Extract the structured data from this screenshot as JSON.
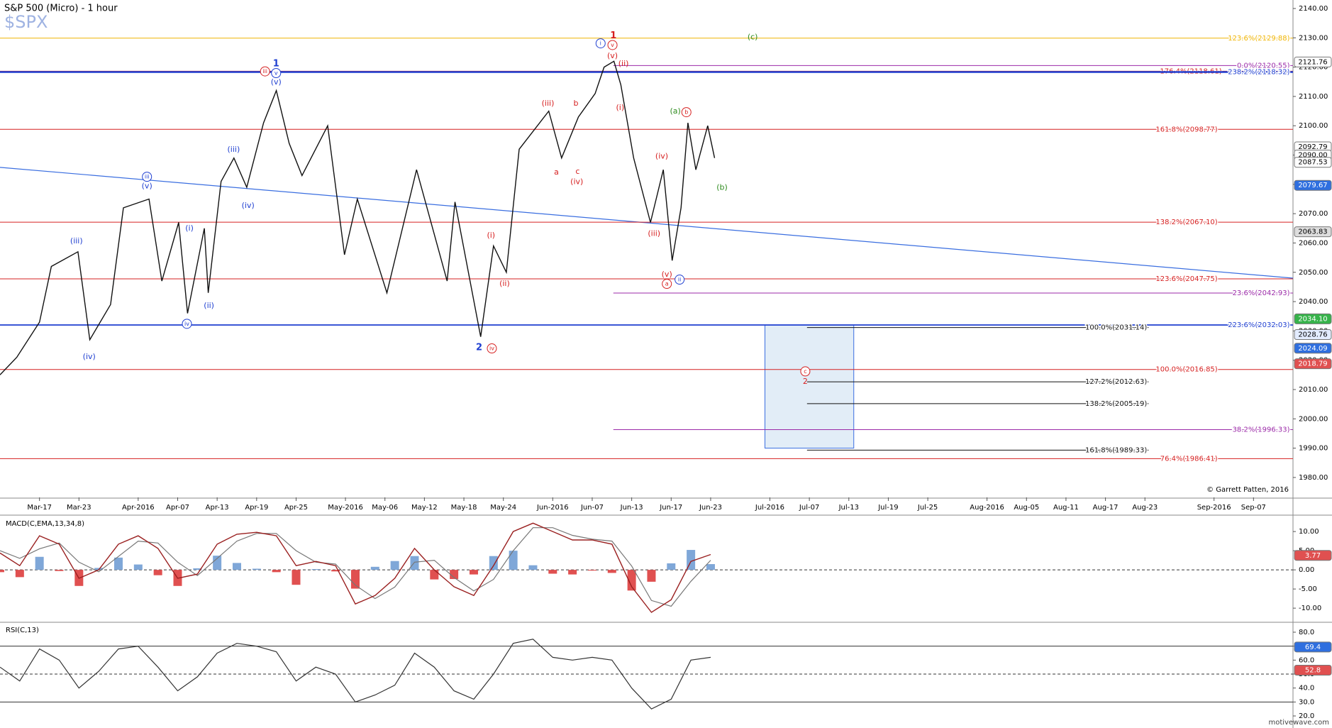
{
  "chart_data": [
    {
      "type": "price",
      "title": "S&P 500 (Micro) - 1 hour",
      "subtitle": "$SPX",
      "annotation": "© Garrett Patten, 2016",
      "xlim": [
        0,
        131
      ],
      "xticks": [
        {
          "value": 4,
          "label": "Mar-17"
        },
        {
          "value": 8,
          "label": "Mar-23"
        },
        {
          "value": 14,
          "label": "Apr-2016"
        },
        {
          "value": 18,
          "label": "Apr-07"
        },
        {
          "value": 22,
          "label": "Apr-13"
        },
        {
          "value": 26,
          "label": "Apr-19"
        },
        {
          "value": 30,
          "label": "Apr-25"
        },
        {
          "value": 35,
          "label": "May-2016"
        },
        {
          "value": 39,
          "label": "May-06"
        },
        {
          "value": 43,
          "label": "May-12"
        },
        {
          "value": 47,
          "label": "May-18"
        },
        {
          "value": 51,
          "label": "May-24"
        },
        {
          "value": 56,
          "label": "Jun-2016"
        },
        {
          "value": 60,
          "label": "Jun-07"
        },
        {
          "value": 64,
          "label": "Jun-13"
        },
        {
          "value": 68,
          "label": "Jun-17"
        },
        {
          "value": 72,
          "label": "Jun-23"
        },
        {
          "value": 78,
          "label": "Jul-2016"
        },
        {
          "value": 82,
          "label": "Jul-07"
        },
        {
          "value": 86,
          "label": "Jul-13"
        },
        {
          "value": 90,
          "label": "Jul-19"
        },
        {
          "value": 94,
          "label": "Jul-25"
        },
        {
          "value": 100,
          "label": "Aug-2016"
        },
        {
          "value": 104,
          "label": "Aug-05"
        },
        {
          "value": 108,
          "label": "Aug-11"
        },
        {
          "value": 112,
          "label": "Aug-17"
        },
        {
          "value": 116,
          "label": "Aug-23"
        },
        {
          "value": 123,
          "label": "Sep-2016"
        },
        {
          "value": 127,
          "label": "Sep-07"
        }
      ],
      "ylim": [
        1973.2,
        2142.9
      ],
      "yticks": [
        {
          "value": 1980,
          "label": "1980.00"
        },
        {
          "value": 1990,
          "label": "1990.00"
        },
        {
          "value": 2000,
          "label": "2000.00"
        },
        {
          "value": 2010,
          "label": "2010.00"
        },
        {
          "value": 2020,
          "label": "2020.00"
        },
        {
          "value": 2030,
          "label": "2030.00"
        },
        {
          "value": 2040,
          "label": "2040.00"
        },
        {
          "value": 2050,
          "label": "2050.00"
        },
        {
          "value": 2060,
          "label": "2060.00"
        },
        {
          "value": 2070,
          "label": "2070.00"
        },
        {
          "value": 2080,
          "label": "2080.00"
        },
        {
          "value": 2090,
          "label": "2090.00"
        },
        {
          "value": 2100,
          "label": "2100.00"
        },
        {
          "value": 2110,
          "label": "2110.00"
        },
        {
          "value": 2120,
          "label": "2120.00"
        },
        {
          "value": 2130,
          "label": "2130.00"
        },
        {
          "value": 2140,
          "label": "2140.00"
        }
      ],
      "x": [
        0,
        1.7,
        4,
        5.2,
        7.9,
        9.1,
        11.2,
        12.5,
        15.1,
        16.4,
        18.1,
        19,
        20.7,
        21.1,
        22.4,
        23.7,
        25,
        26.7,
        28,
        29.3,
        30.6,
        33.2,
        34.9,
        36.2,
        39.2,
        42.2,
        45.3,
        46.1,
        48.7,
        50,
        51.3,
        52.6,
        55.6,
        56.9,
        58.6,
        60.3,
        61.2,
        62.2,
        62.9,
        64.2,
        65.9,
        67.2,
        68.1,
        69,
        69.7,
        70.5,
        71.7,
        72.4
      ],
      "series": [
        {
          "color": "#111111",
          "values": [
            2015,
            2021,
            2033,
            2052,
            2057,
            2027,
            2039,
            2072,
            2075,
            2047,
            2067,
            2036,
            2065,
            2043,
            2081,
            2089,
            2079,
            2101,
            2112,
            2094,
            2083,
            2100,
            2056,
            2075,
            2043,
            2085,
            2047,
            2074,
            2028,
            2059,
            2050,
            2092,
            2105,
            2089,
            2103,
            2111,
            2120,
            2122,
            2114,
            2089,
            2067,
            2085,
            2054,
            2072,
            2101,
            2085,
            2100,
            2089
          ]
        }
      ],
      "trendline": {
        "color": "#3a6ee0",
        "x": [
          0,
          131
        ],
        "values": [
          2085.8,
          2048
        ]
      },
      "target_box": {
        "color": "#3a6ee0",
        "x": [
          77.5,
          86.5
        ],
        "y": [
          1990,
          2032
        ]
      },
      "fib_lines": [
        {
          "value": 2129.88,
          "label": "123.6%(2129.88)",
          "color": "#f0b400"
        },
        {
          "value": 2120.55,
          "label": "0.0%(2120.55)",
          "color": "#9b2aa8"
        },
        {
          "value": 2118.61,
          "label": "176.4%(2118.61)",
          "color": "#d62020"
        },
        {
          "value": 2118.32,
          "label": "238.2%(2118.32)",
          "color": "#1f3fd1"
        },
        {
          "value": 2098.77,
          "label": "161.8%(2098.77)",
          "color": "#d62020"
        },
        {
          "value": 2067.1,
          "label": "138.2%(2067.10)",
          "color": "#d62020"
        },
        {
          "value": 2047.75,
          "label": "123.6%(2047.75)",
          "color": "#d62020"
        },
        {
          "value": 2042.93,
          "label": "23.6%(2042.93)",
          "color": "#9b2aa8"
        },
        {
          "value": 2032.03,
          "label": "223.6%(2032.03)",
          "color": "#1f3fd1"
        },
        {
          "value": 2031.14,
          "label": "100.0%(2031.14)",
          "color": "#111111"
        },
        {
          "value": 2016.85,
          "label": "100.0%(2016.85)",
          "color": "#d62020"
        },
        {
          "value": 2012.63,
          "label": "127.2%(2012.63)",
          "color": "#111111"
        },
        {
          "value": 2005.19,
          "label": "138.2%(2005.19)",
          "color": "#111111"
        },
        {
          "value": 1996.33,
          "label": "38.2%(1996.33)",
          "color": "#9b2aa8"
        },
        {
          "value": 1989.33,
          "label": "161.8%(1989.33)",
          "color": "#111111"
        },
        {
          "value": 1986.41,
          "label": "76.4%(1986.41)",
          "color": "#d62020"
        }
      ],
      "price_tags": [
        {
          "value": 2121.76,
          "label": "2121.76",
          "color": "#ffffff"
        },
        {
          "value": 2092.79,
          "label": "2092.79",
          "color": "#ffffff"
        },
        {
          "value": 2090,
          "label": "2090.00",
          "color": "#ffffff"
        },
        {
          "value": 2087.53,
          "label": "2087.53",
          "color": "#ffffff"
        },
        {
          "value": 2079.67,
          "label": "2079.67",
          "color": "#2f6fdf"
        },
        {
          "value": 2063.83,
          "label": "2063.83",
          "color": "#dddddd"
        },
        {
          "value": 2034.1,
          "label": "2034.10",
          "color": "#36b34a"
        },
        {
          "value": 2028.76,
          "label": "2028.76",
          "color": "#e3ecff"
        },
        {
          "value": 2024.09,
          "label": "2024.09",
          "color": "#2f6fdf"
        },
        {
          "value": 2018.79,
          "label": "2018.79",
          "color": "#e05050"
        }
      ],
      "wave_labels": [
        {
          "text": "1",
          "color": "#1f3fd1",
          "bold": true
        },
        {
          "text": "v",
          "color": "#1f3fd1",
          "circled": true
        },
        {
          "text": "(v)",
          "color": "#1f3fd1"
        },
        {
          "text": "iii",
          "color": "#d62020",
          "circled": true
        },
        {
          "text": "(iii)",
          "color": "#1f3fd1"
        },
        {
          "text": "iii",
          "color": "#1f3fd1",
          "circled": true
        },
        {
          "text": "(v)",
          "color": "#1f3fd1"
        },
        {
          "text": "(iv)",
          "color": "#1f3fd1"
        },
        {
          "text": "(iii)",
          "color": "#1f3fd1"
        },
        {
          "text": "(i)",
          "color": "#1f3fd1"
        },
        {
          "text": "(ii)",
          "color": "#1f3fd1"
        },
        {
          "text": "iv",
          "color": "#1f3fd1",
          "circled": true
        },
        {
          "text": "(iv)",
          "color": "#1f3fd1"
        },
        {
          "text": "2",
          "color": "#1f3fd1",
          "bold": true
        },
        {
          "text": "iv",
          "color": "#d62020",
          "circled": true
        },
        {
          "text": "(i)",
          "color": "#d62020"
        },
        {
          "text": "(ii)",
          "color": "#d62020"
        },
        {
          "text": "(iii)",
          "color": "#d62020"
        },
        {
          "text": "a",
          "color": "#d62020"
        },
        {
          "text": "b",
          "color": "#d62020"
        },
        {
          "text": "c",
          "color": "#d62020"
        },
        {
          "text": "(iv)",
          "color": "#d62020"
        },
        {
          "text": "1",
          "color": "#d62020",
          "bold": true
        },
        {
          "text": "i",
          "color": "#1f3fd1",
          "circled": true
        },
        {
          "text": "v",
          "color": "#d62020",
          "circled": true
        },
        {
          "text": "(v)",
          "color": "#d62020"
        },
        {
          "text": "(ii)",
          "color": "#d62020"
        },
        {
          "text": "(i)",
          "color": "#d62020"
        },
        {
          "text": "(iv)",
          "color": "#d62020"
        },
        {
          "text": "(iii)",
          "color": "#d62020"
        },
        {
          "text": "(v)",
          "color": "#d62020"
        },
        {
          "text": "a",
          "color": "#d62020",
          "circled": true
        },
        {
          "text": "ii",
          "color": "#1f3fd1",
          "circled": true
        },
        {
          "text": "(a)",
          "color": "#2e8b1e"
        },
        {
          "text": "b",
          "color": "#d62020",
          "circled": true
        },
        {
          "text": "(b)",
          "color": "#2e8b1e"
        },
        {
          "text": "(c)",
          "color": "#2e8b1e"
        },
        {
          "text": "c",
          "color": "#d62020",
          "circled": true
        },
        {
          "text": "2",
          "color": "#d62020"
        }
      ]
    },
    {
      "type": "macd",
      "title": "MACD(C,EMA,13,34,8)",
      "ylim": [
        -13.5,
        14.1
      ],
      "yticks": [
        {
          "value": 10,
          "label": "10.00"
        },
        {
          "value": 5,
          "label": "5.00"
        },
        {
          "value": 0,
          "label": "0.00"
        },
        {
          "value": -5,
          "label": "-5.00"
        },
        {
          "value": -10,
          "label": "-10.00"
        }
      ],
      "x": [
        0,
        2,
        4,
        6,
        8,
        10,
        12,
        14,
        16,
        18,
        20,
        22,
        24,
        26,
        28,
        30,
        32,
        34,
        36,
        38,
        40,
        42,
        44,
        46,
        48,
        50,
        52,
        54,
        56,
        58,
        60,
        62,
        64,
        66,
        68,
        70,
        72
      ],
      "series": [
        {
          "color": "#9a2020",
          "values": [
            4.4,
            1.1,
            8.9,
            6.7,
            -2.2,
            0,
            6.7,
            8.9,
            5.6,
            -2.2,
            -1.1,
            6.7,
            9.3,
            9.8,
            8.9,
            1.1,
            2.2,
            1.1,
            -8.9,
            -6.7,
            -2.2,
            5.6,
            0,
            -4.4,
            -6.7,
            1.1,
            10,
            12.2,
            10,
            7.8,
            7.8,
            6.7,
            -4.4,
            -11.1,
            -7.8,
            2.2,
            4
          ]
        },
        {
          "color": "#777777",
          "values": [
            5,
            3,
            5.5,
            7,
            2,
            -0.5,
            3.5,
            7.5,
            7,
            2,
            -1.5,
            3,
            7.5,
            9.5,
            9.5,
            5,
            2,
            1.5,
            -4,
            -7.5,
            -4.5,
            2,
            2.5,
            -2,
            -5.5,
            -2.5,
            5,
            11,
            11,
            9,
            8,
            7.5,
            1,
            -8,
            -9.5,
            -3,
            2.5
          ]
        }
      ],
      "histogram": {
        "up_color": "#7fa7d8",
        "down_color": "#e05050",
        "values": [
          -0.6,
          -1.9,
          3.4,
          -0.3,
          -4.2,
          0.5,
          3.2,
          1.4,
          -1.4,
          -4.2,
          0.4,
          3.7,
          1.8,
          0.3,
          -0.6,
          -3.9,
          0.2,
          -0.4,
          -4.9,
          0.8,
          2.3,
          3.6,
          -2.5,
          -2.4,
          -1.2,
          3.6,
          5,
          1.2,
          -1,
          -1.2,
          -0.2,
          -0.8,
          -5.4,
          -3.1,
          1.7,
          5.2,
          1.5
        ]
      },
      "last_value": {
        "value": 3.77,
        "color": "#e05050"
      }
    },
    {
      "type": "rsi",
      "title": "RSI(C,13)",
      "ylim": [
        13.4,
        86.6
      ],
      "yticks": [
        {
          "value": 80,
          "label": "80.0"
        },
        {
          "value": 70,
          "label": "70.0"
        },
        {
          "value": 60,
          "label": "60.0"
        },
        {
          "value": 50,
          "label": "50.0"
        },
        {
          "value": 40,
          "label": "40.0"
        },
        {
          "value": 30,
          "label": "30.0"
        },
        {
          "value": 20,
          "label": "20.0"
        }
      ],
      "levels": [
        70,
        30
      ],
      "midline": 50,
      "x": [
        0,
        2,
        4,
        6,
        8,
        10,
        12,
        14,
        16,
        18,
        20,
        22,
        24,
        26,
        28,
        30,
        32,
        34,
        36,
        38,
        40,
        42,
        44,
        46,
        48,
        50,
        52,
        54,
        56,
        58,
        60,
        62,
        64,
        66,
        68,
        70,
        72
      ],
      "series": [
        {
          "color": "#333333",
          "values": [
            55,
            45,
            68,
            60,
            40,
            52,
            68,
            70,
            55,
            38,
            48,
            65,
            72,
            70,
            66,
            45,
            55,
            50,
            30,
            35,
            42,
            65,
            55,
            38,
            32,
            50,
            72,
            75,
            62,
            60,
            62,
            60,
            40,
            25,
            32,
            60,
            62
          ]
        }
      ],
      "last_values": [
        {
          "value": 69.4,
          "color": "#2f6fdf"
        },
        {
          "value": 52.8,
          "color": "#e05050"
        }
      ]
    }
  ],
  "footer": "motivewave.com"
}
